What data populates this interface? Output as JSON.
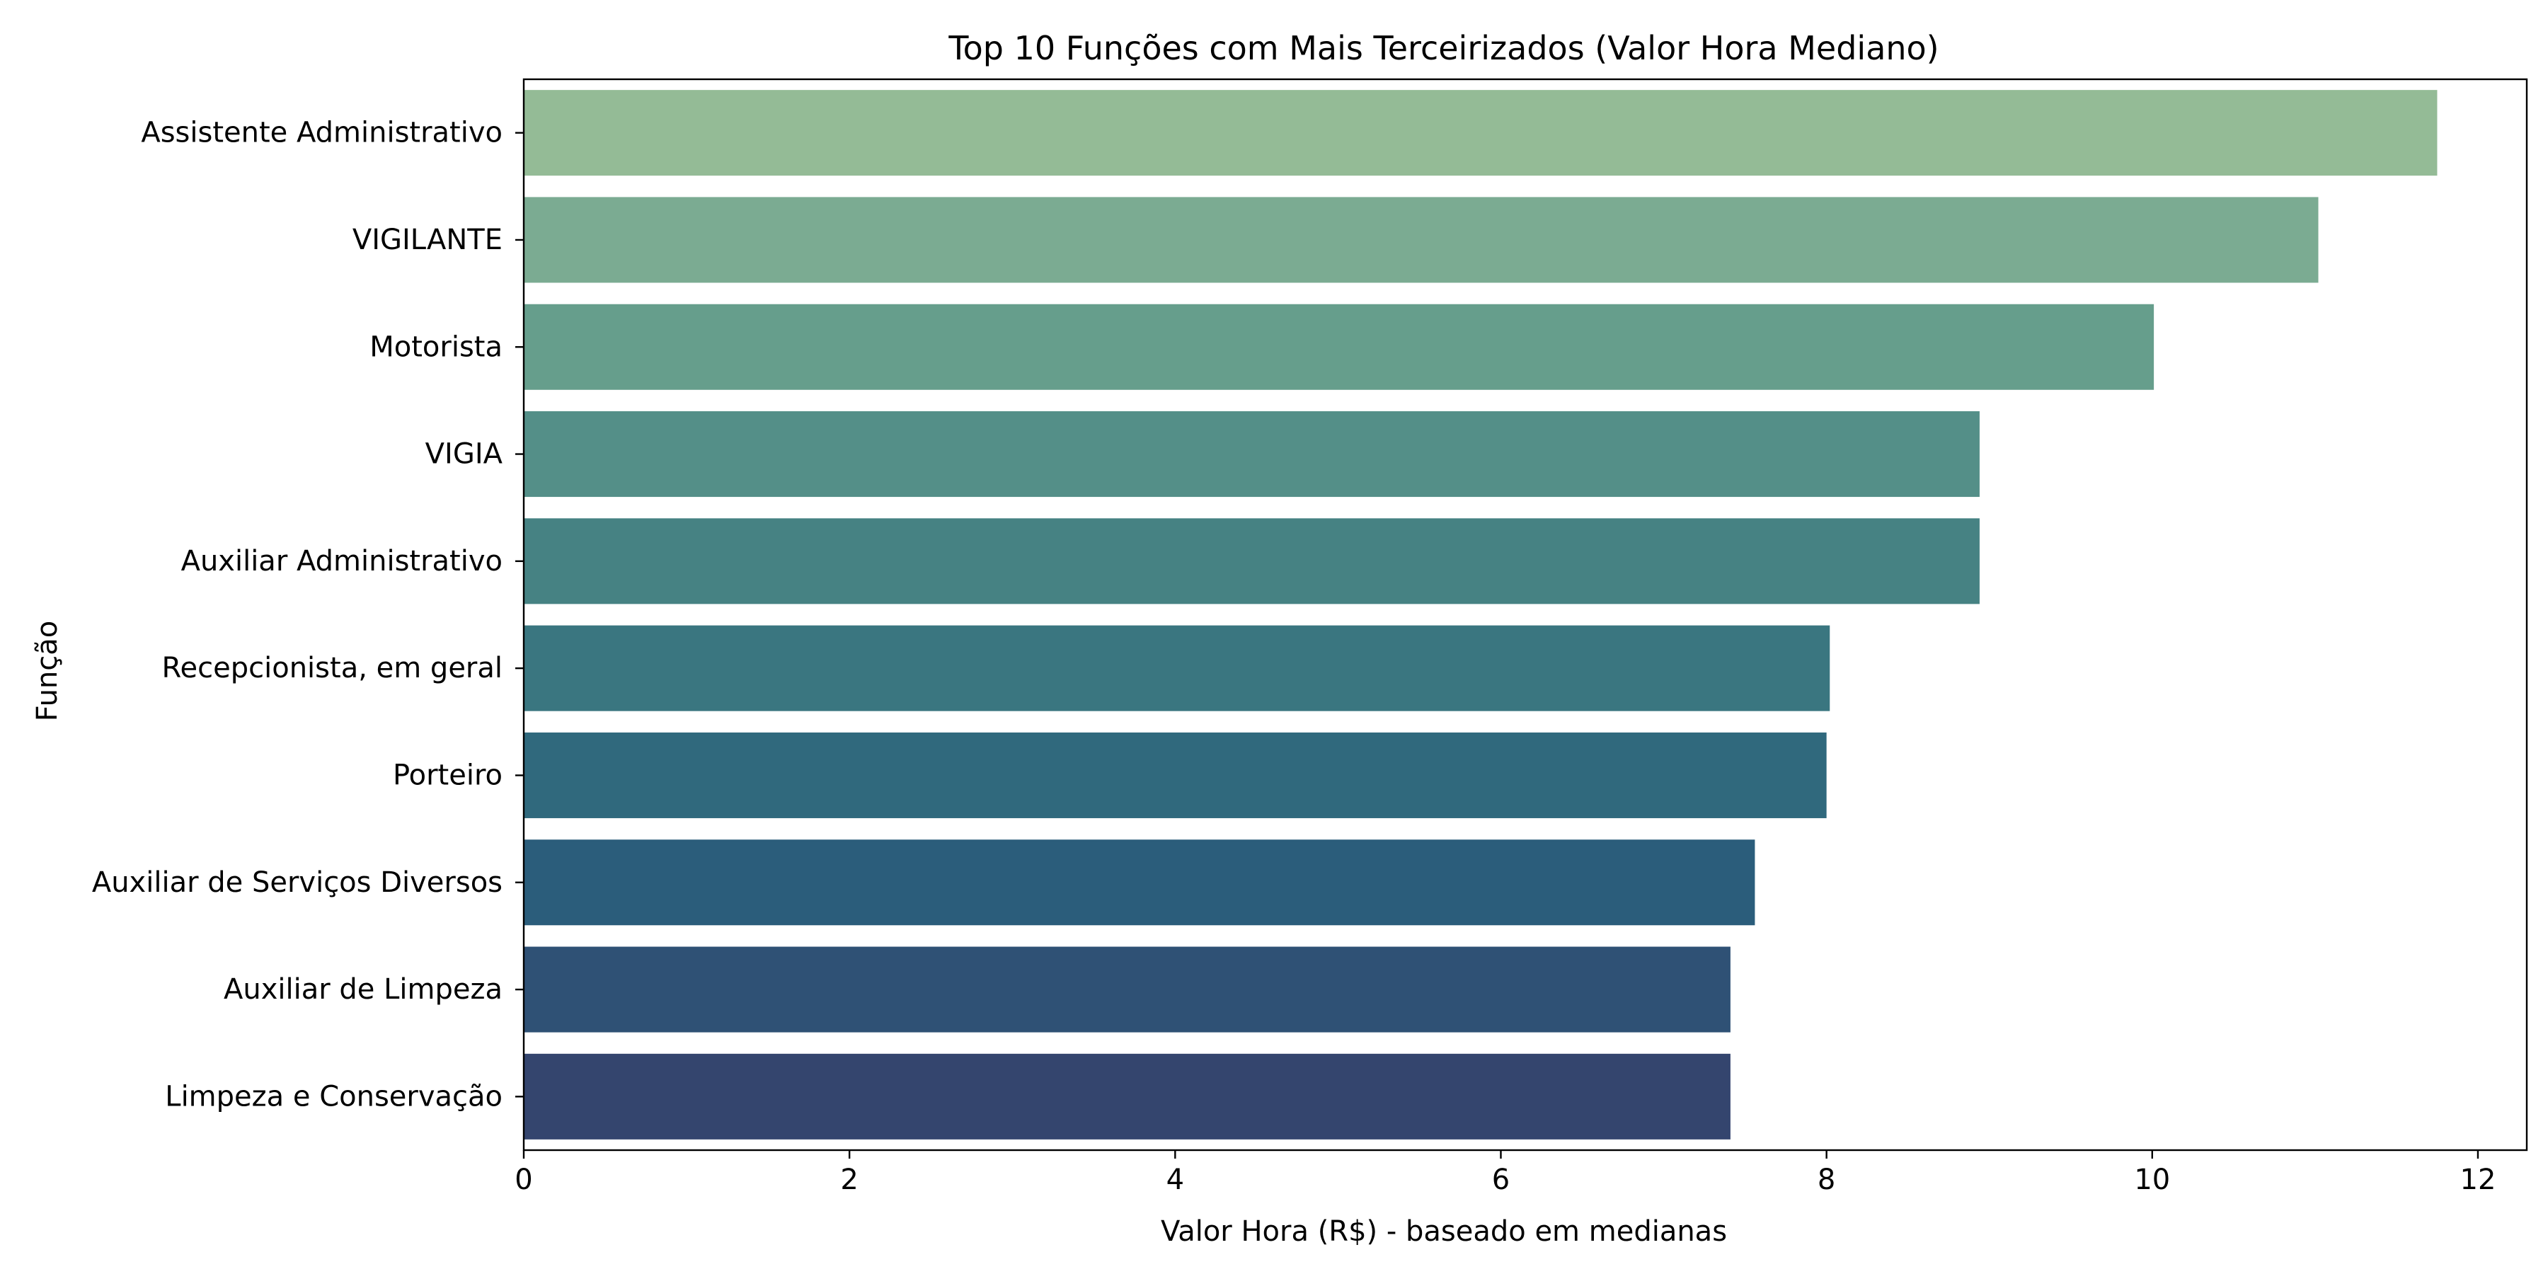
{
  "chart_data": {
    "type": "bar",
    "orientation": "horizontal",
    "title": "Top 10 Funções com Mais Terceirizados (Valor Hora Mediano)",
    "xlabel": "Valor Hora (R$) - baseado em medianas",
    "ylabel": "Função",
    "xlim": [
      0,
      12.3
    ],
    "xticks": [
      0,
      2,
      4,
      6,
      8,
      10,
      12
    ],
    "grid": false,
    "legend": "none",
    "categories": [
      "Assistente Administrativo",
      "VIGILANTE",
      "Motorista",
      "VIGIA",
      "Auxiliar Administrativo",
      "Recepcionista, em geral",
      "Porteiro",
      "Auxiliar de Serviços Diversos",
      "Auxiliar de Limpeza",
      "Limpeza e Conservação"
    ],
    "values": [
      11.75,
      11.02,
      10.01,
      8.94,
      8.94,
      8.02,
      8.0,
      7.56,
      7.41,
      7.41
    ],
    "colors": [
      "#94bb96",
      "#7bab92",
      "#669e8c",
      "#548f88",
      "#468283",
      "#3a7680",
      "#30697d",
      "#2b5d7b",
      "#2f5175",
      "#34456e"
    ]
  }
}
